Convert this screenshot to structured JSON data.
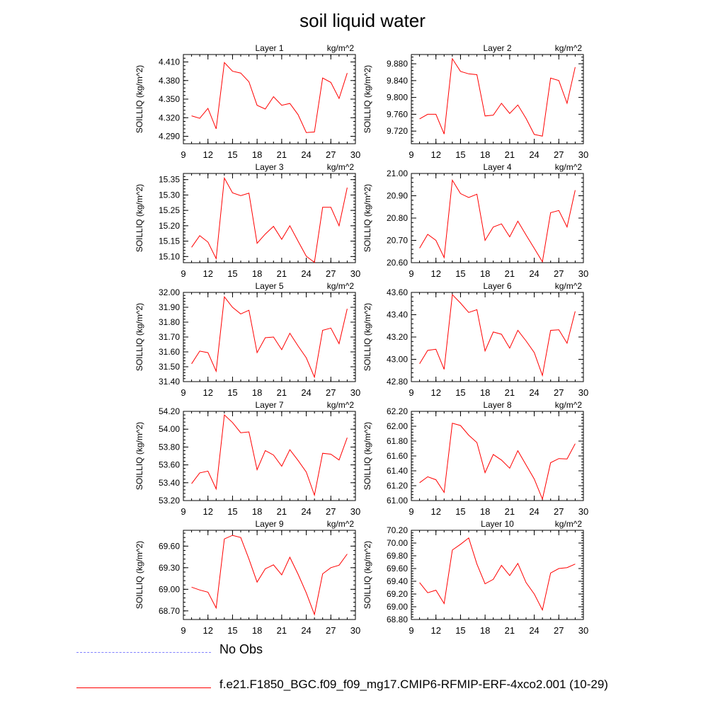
{
  "title": "soil liquid water",
  "legend": [
    {
      "label": "No Obs",
      "color": "#8080ff",
      "style": "dashed"
    },
    {
      "label": "f.e21.F1850_BGC.f09_f09_mg17.CMIP6-RFMIP-ERF-4xco2.001 (10-29)",
      "color": "#ff0000",
      "style": "solid"
    }
  ],
  "chart_data": [
    {
      "type": "line",
      "title": "Layer 1",
      "units": "kg/m^2",
      "ylabel": "SOILLIQ  (kg/m^2)",
      "x": [
        10,
        11,
        12,
        13,
        14,
        15,
        16,
        17,
        18,
        19,
        20,
        21,
        22,
        23,
        24,
        25,
        26,
        27,
        28,
        29
      ],
      "values": [
        4.323,
        4.319,
        4.335,
        4.302,
        4.409,
        4.395,
        4.392,
        4.378,
        4.34,
        4.334,
        4.354,
        4.34,
        4.343,
        4.325,
        4.296,
        4.297,
        4.384,
        4.377,
        4.351,
        4.392
      ],
      "xlim": [
        9,
        30
      ],
      "ylim": [
        4.278,
        4.422
      ],
      "xticks": [
        9,
        12,
        15,
        18,
        21,
        24,
        27,
        30
      ],
      "yticks": [
        4.29,
        4.32,
        4.35,
        4.38,
        4.41
      ],
      "ytick_labels": [
        "4.290",
        "4.320",
        "4.350",
        "4.380",
        "4.410"
      ]
    },
    {
      "type": "line",
      "title": "Layer 2",
      "units": "kg/m^2",
      "ylabel": "SOILLIQ  (kg/m^2)",
      "x": [
        10,
        11,
        12,
        13,
        14,
        15,
        16,
        17,
        18,
        19,
        20,
        21,
        22,
        23,
        24,
        25,
        26,
        27,
        28,
        29
      ],
      "values": [
        9.749,
        9.76,
        9.76,
        9.713,
        9.892,
        9.862,
        9.856,
        9.854,
        9.756,
        9.758,
        9.786,
        9.762,
        9.782,
        9.75,
        9.712,
        9.708,
        9.846,
        9.84,
        9.786,
        9.872
      ],
      "xlim": [
        9,
        30
      ],
      "ylim": [
        9.69,
        9.902
      ],
      "xticks": [
        9,
        12,
        15,
        18,
        21,
        24,
        27,
        30
      ],
      "yticks": [
        9.72,
        9.76,
        9.8,
        9.84,
        9.88
      ],
      "ytick_labels": [
        "9.720",
        "9.760",
        "9.800",
        "9.840",
        "9.880"
      ]
    },
    {
      "type": "line",
      "title": "Layer 3",
      "units": "kg/m^2",
      "ylabel": "SOILLIQ  (kg/m^2)",
      "x": [
        10,
        11,
        12,
        13,
        14,
        15,
        16,
        17,
        18,
        19,
        20,
        21,
        22,
        23,
        24,
        25,
        26,
        27,
        28,
        29
      ],
      "values": [
        15.13,
        15.168,
        15.147,
        15.093,
        15.355,
        15.307,
        15.298,
        15.306,
        15.143,
        15.173,
        15.198,
        15.156,
        15.2,
        15.15,
        15.101,
        15.081,
        15.26,
        15.26,
        15.2,
        15.324
      ],
      "xlim": [
        9,
        30
      ],
      "ylim": [
        15.08,
        15.37
      ],
      "xticks": [
        9,
        12,
        15,
        18,
        21,
        24,
        27,
        30
      ],
      "yticks": [
        15.1,
        15.15,
        15.2,
        15.25,
        15.3,
        15.35
      ],
      "ytick_labels": [
        "15.10",
        "15.15",
        "15.20",
        "15.25",
        "15.30",
        "15.35"
      ]
    },
    {
      "type": "line",
      "title": "Layer 4",
      "units": "kg/m^2",
      "ylabel": "SOILLIQ  (kg/m^2)",
      "x": [
        10,
        11,
        12,
        13,
        14,
        15,
        16,
        17,
        18,
        19,
        20,
        21,
        22,
        23,
        24,
        25,
        26,
        27,
        28,
        29
      ],
      "values": [
        20.665,
        20.727,
        20.7,
        20.623,
        20.97,
        20.91,
        20.892,
        20.907,
        20.7,
        20.76,
        20.774,
        20.716,
        20.786,
        20.724,
        20.664,
        20.604,
        20.824,
        20.834,
        20.76,
        20.925
      ],
      "xlim": [
        9,
        30
      ],
      "ylim": [
        20.6,
        21.0
      ],
      "xticks": [
        9,
        12,
        15,
        18,
        21,
        24,
        27,
        30
      ],
      "yticks": [
        20.6,
        20.7,
        20.8,
        20.9,
        21.0
      ],
      "ytick_labels": [
        "20.60",
        "20.70",
        "20.80",
        "20.90",
        "21.00"
      ]
    },
    {
      "type": "line",
      "title": "Layer 5",
      "units": "kg/m^2",
      "ylabel": "SOILLIQ  (kg/m^2)",
      "x": [
        10,
        11,
        12,
        13,
        14,
        15,
        16,
        17,
        18,
        19,
        20,
        21,
        22,
        23,
        24,
        25,
        26,
        27,
        28,
        29
      ],
      "values": [
        31.52,
        31.605,
        31.595,
        31.47,
        31.97,
        31.9,
        31.855,
        31.88,
        31.595,
        31.695,
        31.7,
        31.615,
        31.725,
        31.64,
        31.56,
        31.43,
        31.745,
        31.76,
        31.655,
        31.89
      ],
      "xlim": [
        9,
        30
      ],
      "ylim": [
        31.4,
        32.0
      ],
      "xticks": [
        9,
        12,
        15,
        18,
        21,
        24,
        27,
        30
      ],
      "yticks": [
        31.4,
        31.5,
        31.6,
        31.7,
        31.8,
        31.9,
        32.0
      ],
      "ytick_labels": [
        "31.40",
        "31.50",
        "31.60",
        "31.70",
        "31.80",
        "31.90",
        "32.00"
      ]
    },
    {
      "type": "line",
      "title": "Layer 6",
      "units": "kg/m^2",
      "ylabel": "SOILLIQ  (kg/m^2)",
      "x": [
        10,
        11,
        12,
        13,
        14,
        15,
        16,
        17,
        18,
        19,
        20,
        21,
        22,
        23,
        24,
        25,
        26,
        27,
        28,
        29
      ],
      "values": [
        42.96,
        43.08,
        43.09,
        42.91,
        43.58,
        43.505,
        43.42,
        43.445,
        43.075,
        43.245,
        43.225,
        43.1,
        43.26,
        43.165,
        43.06,
        42.855,
        43.26,
        43.265,
        43.145,
        43.43
      ],
      "xlim": [
        9,
        30
      ],
      "ylim": [
        42.8,
        43.6
      ],
      "xticks": [
        9,
        12,
        15,
        18,
        21,
        24,
        27,
        30
      ],
      "yticks": [
        42.8,
        43.0,
        43.2,
        43.4,
        43.6
      ],
      "ytick_labels": [
        "42.80",
        "43.00",
        "43.20",
        "43.40",
        "43.60"
      ]
    },
    {
      "type": "line",
      "title": "Layer 7",
      "units": "kg/m^2",
      "ylabel": "SOILLIQ  (kg/m^2)",
      "x": [
        10,
        11,
        12,
        13,
        14,
        15,
        16,
        17,
        18,
        19,
        20,
        21,
        22,
        23,
        24,
        25,
        26,
        27,
        28,
        29
      ],
      "values": [
        53.39,
        53.51,
        53.53,
        53.33,
        54.16,
        54.075,
        53.96,
        53.97,
        53.545,
        53.76,
        53.71,
        53.585,
        53.77,
        53.65,
        53.52,
        53.26,
        53.73,
        53.72,
        53.655,
        53.905
      ],
      "xlim": [
        9,
        30
      ],
      "ylim": [
        53.2,
        54.2
      ],
      "xticks": [
        9,
        12,
        15,
        18,
        21,
        24,
        27,
        30
      ],
      "yticks": [
        53.2,
        53.4,
        53.6,
        53.8,
        54.0,
        54.2
      ],
      "ytick_labels": [
        "53.20",
        "53.40",
        "53.60",
        "53.80",
        "54.00",
        "54.20"
      ]
    },
    {
      "type": "line",
      "title": "Layer 8",
      "units": "kg/m^2",
      "ylabel": "SOILLIQ  (kg/m^2)",
      "x": [
        10,
        11,
        12,
        13,
        14,
        15,
        16,
        17,
        18,
        19,
        20,
        21,
        22,
        23,
        24,
        25,
        26,
        27,
        28,
        29
      ],
      "values": [
        61.24,
        61.32,
        61.28,
        61.11,
        62.04,
        62.01,
        61.88,
        61.78,
        61.375,
        61.62,
        61.545,
        61.435,
        61.67,
        61.48,
        61.29,
        61.02,
        61.51,
        61.565,
        61.56,
        61.765
      ],
      "xlim": [
        9,
        30
      ],
      "ylim": [
        61.0,
        62.2
      ],
      "xticks": [
        9,
        12,
        15,
        18,
        21,
        24,
        27,
        30
      ],
      "yticks": [
        61.0,
        61.2,
        61.4,
        61.6,
        61.8,
        62.0,
        62.2
      ],
      "ytick_labels": [
        "61.00",
        "61.20",
        "61.40",
        "61.60",
        "61.80",
        "62.00",
        "62.20"
      ]
    },
    {
      "type": "line",
      "title": "Layer 9",
      "units": "kg/m^2",
      "ylabel": "SOILLIQ  (kg/m^2)",
      "x": [
        10,
        11,
        12,
        13,
        14,
        15,
        16,
        17,
        18,
        19,
        20,
        21,
        22,
        23,
        24,
        25,
        26,
        27,
        28,
        29
      ],
      "values": [
        69.03,
        68.99,
        68.96,
        68.74,
        69.7,
        69.75,
        69.72,
        69.42,
        69.1,
        69.285,
        69.34,
        69.2,
        69.445,
        69.21,
        68.95,
        68.65,
        69.215,
        69.3,
        69.335,
        69.49
      ],
      "xlim": [
        9,
        30
      ],
      "ylim": [
        68.58,
        69.82
      ],
      "xticks": [
        9,
        12,
        15,
        18,
        21,
        24,
        27,
        30
      ],
      "yticks": [
        68.7,
        69.0,
        69.3,
        69.6
      ],
      "ytick_labels": [
        "68.70",
        "69.00",
        "69.30",
        "69.60"
      ]
    },
    {
      "type": "line",
      "title": "Layer 10",
      "units": "kg/m^2",
      "ylabel": "SOILLIQ  (kg/m^2)",
      "x": [
        10,
        11,
        12,
        13,
        14,
        15,
        16,
        17,
        18,
        19,
        20,
        21,
        22,
        23,
        24,
        25,
        26,
        27,
        28,
        29
      ],
      "values": [
        69.38,
        69.22,
        69.26,
        69.05,
        69.89,
        69.98,
        70.08,
        69.67,
        69.36,
        69.43,
        69.65,
        69.49,
        69.68,
        69.38,
        69.2,
        68.95,
        69.53,
        69.6,
        69.615,
        69.67
      ],
      "xlim": [
        9,
        30
      ],
      "ylim": [
        68.8,
        70.2
      ],
      "xticks": [
        9,
        12,
        15,
        18,
        21,
        24,
        27,
        30
      ],
      "yticks": [
        68.8,
        69.0,
        69.2,
        69.4,
        69.6,
        69.8,
        70.0,
        70.2
      ],
      "ytick_labels": [
        "68.80",
        "69.00",
        "69.20",
        "69.40",
        "69.60",
        "69.80",
        "70.00",
        "70.20"
      ]
    }
  ]
}
